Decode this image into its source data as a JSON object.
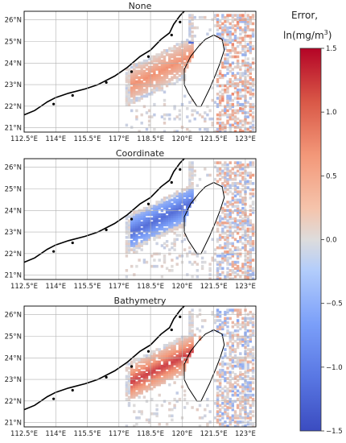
{
  "colorbar": {
    "title_line1": "Error,",
    "title_line2_prefix": "ln(mg/m",
    "title_line2_sup": "3",
    "title_line2_suffix": ")",
    "ticks": [
      "1.5",
      "1.0",
      "0.5",
      "0.0",
      "−0.5",
      "−1.0",
      "−1.5"
    ],
    "range": [
      -1.5,
      1.5
    ],
    "colors": [
      "#3b4cc0",
      "#6788ee",
      "#9abbff",
      "#c9d7f0",
      "#edd1c2",
      "#f7a889",
      "#e26952",
      "#b40426"
    ]
  },
  "panels": [
    {
      "title": "None"
    },
    {
      "title": "Coordinate"
    },
    {
      "title": "Bathymetry"
    }
  ],
  "axes": {
    "x_ticks": [
      "112.5°E",
      "114°E",
      "115.5°E",
      "117°E",
      "118.5°E",
      "120°E",
      "121.5°E",
      "123°E"
    ],
    "y_ticks": [
      "26°N",
      "25°N",
      "24°N",
      "23°N",
      "22°N",
      "21°N"
    ],
    "x_values": [
      112.5,
      114,
      115.5,
      117,
      118.5,
      120,
      121.5,
      123
    ],
    "y_values": [
      26,
      25,
      24,
      23,
      22,
      21
    ],
    "x_range": [
      112.5,
      123.5
    ],
    "y_range": [
      20.8,
      26.4
    ],
    "grid": true
  }
}
